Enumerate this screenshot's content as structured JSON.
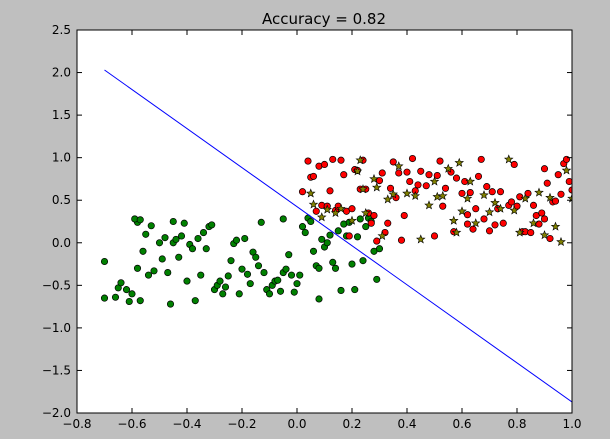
{
  "chart_data": {
    "type": "scatter",
    "title": "Accuracy = 0.82",
    "xlabel": "",
    "ylabel": "",
    "xlim": [
      -0.8,
      1.0
    ],
    "ylim": [
      -2.0,
      2.5
    ],
    "xticks": [
      -0.8,
      -0.6,
      -0.4,
      -0.2,
      0.0,
      0.2,
      0.4,
      0.6,
      0.8,
      1.0
    ],
    "xtick_labels": [
      "−0.8",
      "−0.6",
      "−0.4",
      "−0.2",
      "0.0",
      "0.2",
      "0.4",
      "0.6",
      "0.8",
      "1.0"
    ],
    "yticks": [
      -2.0,
      -1.5,
      -1.0,
      -0.5,
      0.0,
      0.5,
      1.0,
      1.5,
      2.0,
      2.5
    ],
    "ytick_labels": [
      "−2.0",
      "−1.5",
      "−1.0",
      "−0.5",
      "0.0",
      "0.5",
      "1.0",
      "1.5",
      "2.0",
      "2.5"
    ],
    "grid": false,
    "legend": "none",
    "colors": {
      "background": "#bfbfbf",
      "plot_area": "#ffffff",
      "class_0": "#008000",
      "class_1": "#ff0000",
      "marker_edge": "#000000",
      "star_fill": "#808000",
      "line": "#0000ff"
    },
    "decision_boundary": {
      "x": [
        -0.7,
        1.0
      ],
      "y": [
        2.03,
        -1.87
      ]
    },
    "series": [
      {
        "marker": "circle",
        "color": "#008000",
        "points": [
          [
            -0.7,
            -0.22
          ],
          [
            -0.7,
            -0.65
          ],
          [
            -0.66,
            -0.64
          ],
          [
            -0.65,
            -0.53
          ],
          [
            -0.64,
            -0.47
          ],
          [
            -0.62,
            -0.55
          ],
          [
            -0.61,
            -0.69
          ],
          [
            -0.6,
            -0.6
          ],
          [
            -0.58,
            0.24
          ],
          [
            -0.59,
            0.28
          ],
          [
            -0.57,
            0.27
          ],
          [
            -0.58,
            -0.3
          ],
          [
            -0.57,
            -0.68
          ],
          [
            -0.56,
            -0.1
          ],
          [
            -0.55,
            0.1
          ],
          [
            -0.54,
            -0.38
          ],
          [
            -0.53,
            0.2
          ],
          [
            -0.52,
            -0.33
          ],
          [
            -0.5,
            0.0
          ],
          [
            -0.49,
            -0.19
          ],
          [
            -0.48,
            0.06
          ],
          [
            -0.47,
            -0.35
          ],
          [
            -0.46,
            -0.72
          ],
          [
            -0.45,
            0.0
          ],
          [
            -0.45,
            0.25
          ],
          [
            -0.44,
            0.04
          ],
          [
            -0.43,
            -0.17
          ],
          [
            -0.42,
            0.08
          ],
          [
            -0.41,
            0.23
          ],
          [
            -0.4,
            -0.45
          ],
          [
            -0.39,
            -0.02
          ],
          [
            -0.38,
            -0.07
          ],
          [
            -0.37,
            -0.68
          ],
          [
            -0.36,
            0.05
          ],
          [
            -0.35,
            -0.38
          ],
          [
            -0.34,
            0.12
          ],
          [
            -0.33,
            -0.07
          ],
          [
            -0.32,
            0.19
          ],
          [
            -0.31,
            0.21
          ],
          [
            -0.3,
            -0.55
          ],
          [
            -0.29,
            -0.5
          ],
          [
            -0.28,
            -0.45
          ],
          [
            -0.27,
            -0.6
          ],
          [
            -0.26,
            -0.52
          ],
          [
            -0.25,
            -0.39
          ],
          [
            -0.24,
            -0.21
          ],
          [
            -0.23,
            -0.01
          ],
          [
            -0.22,
            0.03
          ],
          [
            -0.21,
            -0.6
          ],
          [
            -0.2,
            -0.31
          ],
          [
            -0.19,
            0.05
          ],
          [
            -0.18,
            -0.37
          ],
          [
            -0.17,
            -0.48
          ],
          [
            -0.16,
            -0.11
          ],
          [
            -0.15,
            -0.17
          ],
          [
            -0.14,
            -0.27
          ],
          [
            -0.13,
            0.24
          ],
          [
            -0.12,
            -0.35
          ],
          [
            -0.11,
            -0.55
          ],
          [
            -0.1,
            -0.6
          ],
          [
            -0.09,
            -0.5
          ],
          [
            -0.08,
            -0.45
          ],
          [
            -0.07,
            -0.44
          ],
          [
            -0.06,
            -0.57
          ],
          [
            -0.05,
            -0.35
          ],
          [
            -0.05,
            0.28
          ],
          [
            -0.04,
            -0.31
          ],
          [
            -0.03,
            -0.14
          ],
          [
            -0.02,
            -0.38
          ],
          [
            -0.01,
            -0.58
          ],
          [
            0.0,
            -0.48
          ],
          [
            0.01,
            -0.38
          ],
          [
            0.02,
            0.19
          ],
          [
            0.03,
            0.12
          ],
          [
            0.04,
            0.29
          ],
          [
            0.05,
            0.25
          ],
          [
            0.06,
            -0.1
          ],
          [
            0.07,
            -0.27
          ],
          [
            0.08,
            -0.3
          ],
          [
            0.08,
            -0.66
          ],
          [
            0.09,
            0.04
          ],
          [
            0.1,
            -0.05
          ],
          [
            0.11,
            0.0
          ],
          [
            0.12,
            0.09
          ],
          [
            0.13,
            -0.23
          ],
          [
            0.14,
            -0.3
          ],
          [
            0.15,
            0.14
          ],
          [
            0.16,
            -0.56
          ],
          [
            0.17,
            0.22
          ],
          [
            0.18,
            0.08
          ],
          [
            0.19,
            0.24
          ],
          [
            0.2,
            -0.25
          ],
          [
            0.21,
            -0.55
          ],
          [
            0.22,
            0.07
          ],
          [
            0.23,
            0.28
          ],
          [
            0.24,
            -0.21
          ],
          [
            0.25,
            0.19
          ],
          [
            0.26,
            0.29
          ],
          [
            0.27,
            0.25
          ],
          [
            0.28,
            -0.1
          ],
          [
            0.29,
            -0.43
          ],
          [
            0.3,
            -0.07
          ]
        ]
      },
      {
        "marker": "circle",
        "color": "#ff0000",
        "points": [
          [
            0.02,
            0.6
          ],
          [
            0.04,
            0.96
          ],
          [
            0.05,
            0.77
          ],
          [
            0.06,
            0.78
          ],
          [
            0.07,
            0.37
          ],
          [
            0.08,
            0.9
          ],
          [
            0.09,
            0.44
          ],
          [
            0.1,
            0.92
          ],
          [
            0.11,
            0.43
          ],
          [
            0.12,
            0.61
          ],
          [
            0.13,
            0.98
          ],
          [
            0.14,
            0.38
          ],
          [
            0.15,
            0.43
          ],
          [
            0.16,
            0.97
          ],
          [
            0.17,
            0.8
          ],
          [
            0.18,
            0.37
          ],
          [
            0.19,
            0.08
          ],
          [
            0.2,
            0.4
          ],
          [
            0.21,
            0.86
          ],
          [
            0.22,
            0.85
          ],
          [
            0.23,
            0.63
          ],
          [
            0.24,
            0.97
          ],
          [
            0.25,
            0.63
          ],
          [
            0.26,
            0.35
          ],
          [
            0.27,
            0.23
          ],
          [
            0.28,
            0.32
          ],
          [
            0.29,
            0.02
          ],
          [
            0.3,
            0.73
          ],
          [
            0.31,
            0.82
          ],
          [
            0.32,
            0.12
          ],
          [
            0.33,
            0.23
          ],
          [
            0.34,
            0.64
          ],
          [
            0.35,
            0.95
          ],
          [
            0.36,
            0.53
          ],
          [
            0.37,
            0.82
          ],
          [
            0.38,
            0.03
          ],
          [
            0.39,
            0.32
          ],
          [
            0.4,
            0.83
          ],
          [
            0.41,
            0.72
          ],
          [
            0.42,
            0.99
          ],
          [
            0.43,
            0.61
          ],
          [
            0.44,
            0.68
          ],
          [
            0.45,
            0.84
          ],
          [
            0.47,
            0.67
          ],
          [
            0.48,
            0.8
          ],
          [
            0.5,
            0.08
          ],
          [
            0.51,
            0.79
          ],
          [
            0.52,
            0.96
          ],
          [
            0.53,
            0.43
          ],
          [
            0.54,
            0.64
          ],
          [
            0.56,
            0.83
          ],
          [
            0.57,
            0.13
          ],
          [
            0.58,
            0.76
          ],
          [
            0.6,
            0.58
          ],
          [
            0.61,
            0.72
          ],
          [
            0.62,
            0.22
          ],
          [
            0.62,
            0.33
          ],
          [
            0.63,
            0.59
          ],
          [
            0.64,
            0.16
          ],
          [
            0.65,
            0.4
          ],
          [
            0.66,
            0.78
          ],
          [
            0.67,
            0.98
          ],
          [
            0.68,
            0.28
          ],
          [
            0.69,
            0.66
          ],
          [
            0.7,
            0.14
          ],
          [
            0.71,
            0.6
          ],
          [
            0.72,
            0.21
          ],
          [
            0.73,
            0.4
          ],
          [
            0.74,
            0.6
          ],
          [
            0.75,
            0.23
          ],
          [
            0.77,
            0.44
          ],
          [
            0.78,
            0.48
          ],
          [
            0.79,
            0.92
          ],
          [
            0.8,
            0.43
          ],
          [
            0.81,
            0.54
          ],
          [
            0.82,
            0.13
          ],
          [
            0.83,
            0.13
          ],
          [
            0.84,
            0.58
          ],
          [
            0.85,
            0.12
          ],
          [
            0.86,
            0.44
          ],
          [
            0.87,
            0.32
          ],
          [
            0.88,
            0.22
          ],
          [
            0.89,
            0.35
          ],
          [
            0.9,
            0.28
          ],
          [
            0.9,
            0.87
          ],
          [
            0.91,
            0.7
          ],
          [
            0.92,
            0.05
          ],
          [
            0.93,
            0.48
          ],
          [
            0.94,
            0.49
          ],
          [
            0.95,
            0.8
          ],
          [
            0.96,
            0.57
          ],
          [
            0.97,
            0.93
          ],
          [
            0.98,
            0.98
          ],
          [
            0.99,
            0.72
          ],
          [
            1.0,
            0.62
          ]
        ]
      },
      {
        "marker": "star",
        "color": "#808000",
        "points": [
          [
            0.05,
            0.58
          ],
          [
            0.06,
            0.45
          ],
          [
            0.09,
            0.3
          ],
          [
            0.11,
            0.39
          ],
          [
            0.14,
            0.35
          ],
          [
            0.16,
            0.4
          ],
          [
            0.2,
            0.26
          ],
          [
            0.22,
            0.84
          ],
          [
            0.23,
            0.97
          ],
          [
            0.24,
            0.63
          ],
          [
            0.25,
            0.35
          ],
          [
            0.28,
            0.75
          ],
          [
            0.29,
            0.65
          ],
          [
            0.31,
            0.08
          ],
          [
            0.33,
            0.51
          ],
          [
            0.35,
            0.57
          ],
          [
            0.37,
            0.9
          ],
          [
            0.4,
            0.58
          ],
          [
            0.43,
            0.55
          ],
          [
            0.45,
            0.04
          ],
          [
            0.48,
            0.44
          ],
          [
            0.5,
            0.72
          ],
          [
            0.51,
            0.54
          ],
          [
            0.53,
            0.55
          ],
          [
            0.55,
            0.87
          ],
          [
            0.57,
            0.26
          ],
          [
            0.58,
            0.12
          ],
          [
            0.59,
            0.94
          ],
          [
            0.6,
            0.37
          ],
          [
            0.62,
            0.52
          ],
          [
            0.63,
            0.72
          ],
          [
            0.65,
            0.23
          ],
          [
            0.68,
            0.56
          ],
          [
            0.7,
            0.36
          ],
          [
            0.72,
            0.47
          ],
          [
            0.74,
            0.4
          ],
          [
            0.77,
            0.98
          ],
          [
            0.79,
            0.38
          ],
          [
            0.81,
            0.12
          ],
          [
            0.83,
            0.52
          ],
          [
            0.86,
            0.23
          ],
          [
            0.88,
            0.59
          ],
          [
            0.9,
            0.09
          ],
          [
            0.92,
            0.53
          ],
          [
            0.94,
            0.19
          ],
          [
            0.96,
            0.01
          ],
          [
            0.98,
            0.85
          ],
          [
            1.0,
            0.52
          ]
        ]
      }
    ]
  }
}
